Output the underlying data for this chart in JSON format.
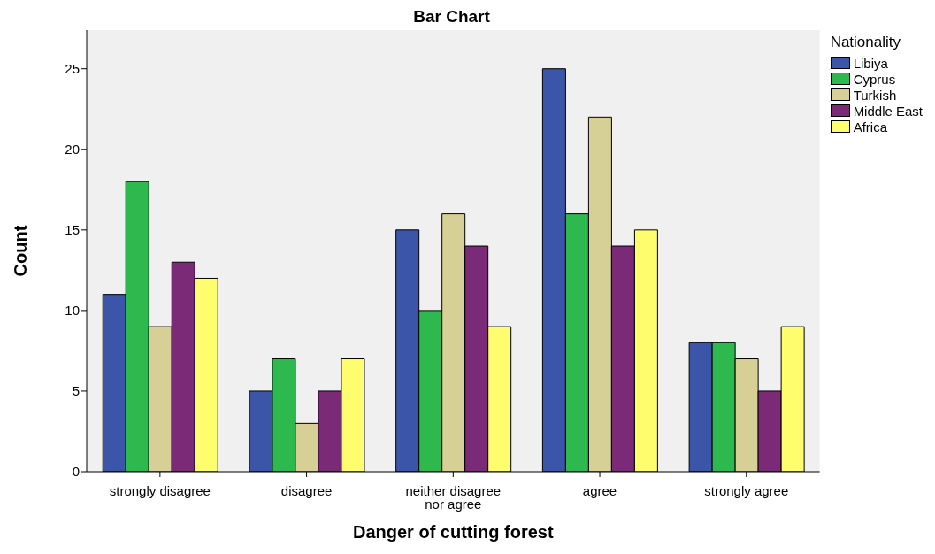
{
  "chart_data": {
    "type": "bar",
    "title": "Bar Chart",
    "xlabel": "Danger of cutting forest",
    "ylabel": "Count",
    "legend_title": "Nationality",
    "categories": [
      "strongly disagree",
      "disagree",
      "neither disagree nor agree",
      "agree",
      "strongly agree"
    ],
    "series": [
      {
        "name": "Libiya",
        "color": "#3b55a8",
        "values": [
          11,
          5,
          15,
          25,
          8
        ]
      },
      {
        "name": "Cyprus",
        "color": "#2db94d",
        "values": [
          18,
          7,
          10,
          16,
          8
        ]
      },
      {
        "name": "Turkish",
        "color": "#d6cf96",
        "values": [
          9,
          3,
          16,
          22,
          7
        ]
      },
      {
        "name": "Middle East",
        "color": "#7b2a78",
        "values": [
          13,
          5,
          14,
          14,
          5
        ]
      },
      {
        "name": "Africa",
        "color": "#fdfd6e",
        "values": [
          12,
          7,
          9,
          15,
          9
        ]
      }
    ],
    "ylim": [
      0,
      27.4
    ],
    "yticks": [
      0,
      5,
      10,
      15,
      20,
      25
    ],
    "grid": false,
    "legend": "top right"
  }
}
